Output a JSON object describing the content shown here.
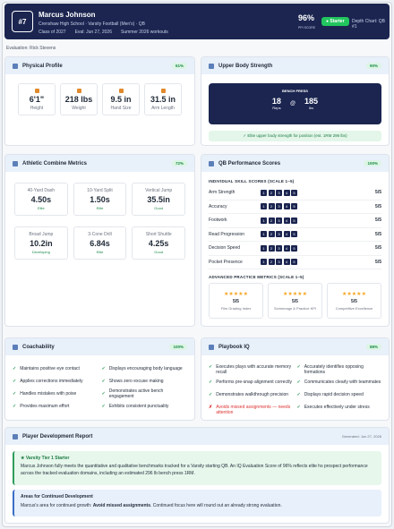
{
  "header": {
    "number": "#7",
    "name": "Marcus Johnson",
    "school": "Crenshaw High School · Varsity Football (Men's) · QB",
    "meta": [
      "Class of 2027",
      "Eval: Jun 27, 2026",
      "Summer 2026 workouts"
    ],
    "score": "96%",
    "score_label": "PPI SCORE",
    "status": "● Starter",
    "depth": "Depth Chart: QB #1"
  },
  "evaluator": "Evaluation: Rick Stevens",
  "physical": {
    "title": "Physical Profile",
    "badge": "61%",
    "items": [
      {
        "value": "6'1\"",
        "label": "Height"
      },
      {
        "value": "218 lbs",
        "label": "Weight"
      },
      {
        "value": "9.5 in",
        "label": "Hand Size"
      },
      {
        "value": "31.5 in",
        "label": "Arm Length"
      }
    ]
  },
  "strength": {
    "title": "Upper Body Strength",
    "badge": "90%",
    "box_title": "BENCH PRESS",
    "reps": "18",
    "reps_label": "Reps",
    "at": "@",
    "weight": "185",
    "weight_label": "lbs",
    "note": "✓ Elite upper body strength for position (est. 1RM 296 lbs)"
  },
  "combine": {
    "title": "Athletic Combine Metrics",
    "badge": "72%",
    "items": [
      {
        "label": "40-Yard Dash",
        "value": "4.50s",
        "grade": "Elite"
      },
      {
        "label": "10-Yard Split",
        "value": "1.50s",
        "grade": "Elite"
      },
      {
        "label": "Vertical Jump",
        "value": "35.5in",
        "grade": "Good"
      },
      {
        "label": "Broad Jump",
        "value": "10.2in",
        "grade": "Developing"
      },
      {
        "label": "3-Cone Drill",
        "value": "6.84s",
        "grade": "Elite"
      },
      {
        "label": "Short Shuttle",
        "value": "4.25s",
        "grade": "Good"
      }
    ]
  },
  "qb": {
    "title": "QB Performance Scores",
    "badge": "100%",
    "skills_title": "INDIVIDUAL SKILL SCORES (SCALE 1–5)",
    "scale": [
      "1",
      "2",
      "3",
      "4",
      "5"
    ],
    "skills": [
      {
        "label": "Arm Strength",
        "score": "5/5"
      },
      {
        "label": "Accuracy",
        "score": "5/5"
      },
      {
        "label": "Footwork",
        "score": "5/5"
      },
      {
        "label": "Read Progression",
        "score": "5/5"
      },
      {
        "label": "Decision Speed",
        "score": "5/5"
      },
      {
        "label": "Pocket Presence",
        "score": "5/5"
      }
    ],
    "advanced_title": "ADVANCED PRACTICE METRICS (SCALE 1–5)",
    "advanced": [
      {
        "stars": "★★★★★",
        "score": "5/5",
        "label": "Film Grading Index"
      },
      {
        "stars": "★★★★★",
        "score": "5/5",
        "label": "Scrimmage & Practice KPI"
      },
      {
        "stars": "★★★★★",
        "score": "5/5",
        "label": "Competitive Excellence"
      }
    ]
  },
  "coachability": {
    "title": "Coachability",
    "badge": "100%",
    "items": [
      "Maintains positive eye contact",
      "Displays encouraging body language",
      "Applies corrections immediately",
      "Shows zero excuse making",
      "Handles mistakes with poise",
      "Demonstrates active bench engagement",
      "Provides maximum effort",
      "Exhibits consistent punctuality"
    ]
  },
  "playbook": {
    "title": "Playbook IQ",
    "badge": "88%",
    "items": [
      {
        "text": "Executes plays with accurate memory recall",
        "ok": true
      },
      {
        "text": "Accurately identifies opposing formations",
        "ok": true
      },
      {
        "text": "Performs pre-snap alignment correctly",
        "ok": true
      },
      {
        "text": "Communicates clearly with teammates",
        "ok": true
      },
      {
        "text": "Demonstrates walkthrough precision",
        "ok": true
      },
      {
        "text": "Displays rapid decision speed",
        "ok": true
      },
      {
        "text": "Avoids missed assignments — needs attention",
        "ok": false
      },
      {
        "text": "Executes effectively under stress",
        "ok": true
      }
    ]
  },
  "report": {
    "title": "Player Development Report",
    "generated": "Generated: Jun 27, 2026",
    "tier": "★ Varsity Tier 1 Starter",
    "summary": "Marcus Johnson fully meets the quantitative and qualitative benchmarks tracked for a Varsity starting QB. An IQ Evaluation Score of 96% reflects elite hs prospect performance across the tracked evaluation domains, including an estimated 296 lb bench press 1RM.",
    "dev_title": "Areas for Continued Development",
    "dev_pre": "Marcus's area for continued growth: ",
    "dev_bold": "Avoid missed assignments",
    "dev_post": ". Continued focus here will round out an already strong evaluation."
  }
}
